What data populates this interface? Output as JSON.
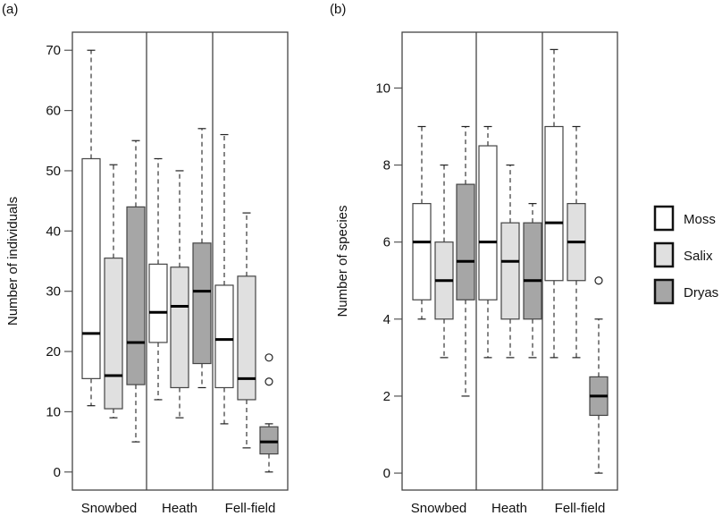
{
  "colors": {
    "moss": "#ffffff",
    "salix": "#e0e0e0",
    "dryas": "#a6a6a6",
    "stroke": "#444444",
    "median": "#000000"
  },
  "legend": {
    "items": [
      {
        "label": "Moss",
        "color_key": "moss"
      },
      {
        "label": "Salix",
        "color_key": "salix"
      },
      {
        "label": "Dryas",
        "color_key": "dryas"
      }
    ],
    "placement": "right"
  },
  "chart_data": [
    {
      "type": "boxplot",
      "panel_label": "(a)",
      "title": "",
      "xlabel": "",
      "ylabel": "Number of individuals",
      "ylim": [
        -3,
        73
      ],
      "yticks": [
        0,
        10,
        20,
        30,
        40,
        50,
        60,
        70
      ],
      "grid": false,
      "categories": [
        "Snowbed",
        "Heath",
        "Fell-field"
      ],
      "series_names": [
        "Moss",
        "Salix",
        "Dryas"
      ],
      "boxes": [
        {
          "category": "Snowbed",
          "series": "Moss",
          "whisker_low": 11,
          "q1": 15.5,
          "median": 23,
          "q3": 52,
          "whisker_high": 70,
          "outliers": []
        },
        {
          "category": "Snowbed",
          "series": "Salix",
          "whisker_low": 9,
          "q1": 10.5,
          "median": 16,
          "q3": 35.5,
          "whisker_high": 51,
          "outliers": []
        },
        {
          "category": "Snowbed",
          "series": "Dryas",
          "whisker_low": 5,
          "q1": 14.5,
          "median": 21.5,
          "q3": 44,
          "whisker_high": 55,
          "outliers": []
        },
        {
          "category": "Heath",
          "series": "Moss",
          "whisker_low": 12,
          "q1": 21.5,
          "median": 26.5,
          "q3": 34.5,
          "whisker_high": 52,
          "outliers": []
        },
        {
          "category": "Heath",
          "series": "Salix",
          "whisker_low": 9,
          "q1": 14,
          "median": 27.5,
          "q3": 34,
          "whisker_high": 50,
          "outliers": []
        },
        {
          "category": "Heath",
          "series": "Dryas",
          "whisker_low": 14,
          "q1": 18,
          "median": 30,
          "q3": 38,
          "whisker_high": 57,
          "outliers": []
        },
        {
          "category": "Fell-field",
          "series": "Moss",
          "whisker_low": 8,
          "q1": 14,
          "median": 22,
          "q3": 31,
          "whisker_high": 56,
          "outliers": []
        },
        {
          "category": "Fell-field",
          "series": "Salix",
          "whisker_low": 4,
          "q1": 12,
          "median": 15.5,
          "q3": 32.5,
          "whisker_high": 43,
          "outliers": []
        },
        {
          "category": "Fell-field",
          "series": "Dryas",
          "whisker_low": 0,
          "q1": 3,
          "median": 5,
          "q3": 7.5,
          "whisker_high": 8,
          "outliers": [
            15,
            19
          ]
        }
      ]
    },
    {
      "type": "boxplot",
      "panel_label": "(b)",
      "title": "",
      "xlabel": "",
      "ylabel": "Number of species",
      "ylim": [
        -0.44,
        11.45
      ],
      "yticks": [
        0,
        2,
        4,
        6,
        8,
        10
      ],
      "grid": false,
      "categories": [
        "Snowbed",
        "Heath",
        "Fell-field"
      ],
      "series_names": [
        "Moss",
        "Salix",
        "Dryas"
      ],
      "boxes": [
        {
          "category": "Snowbed",
          "series": "Moss",
          "whisker_low": 4,
          "q1": 4.5,
          "median": 6,
          "q3": 7,
          "whisker_high": 9,
          "outliers": []
        },
        {
          "category": "Snowbed",
          "series": "Salix",
          "whisker_low": 3,
          "q1": 4,
          "median": 5,
          "q3": 6,
          "whisker_high": 8,
          "outliers": []
        },
        {
          "category": "Snowbed",
          "series": "Dryas",
          "whisker_low": 2,
          "q1": 4.5,
          "median": 5.5,
          "q3": 7.5,
          "whisker_high": 9,
          "outliers": []
        },
        {
          "category": "Heath",
          "series": "Moss",
          "whisker_low": 3,
          "q1": 4.5,
          "median": 6,
          "q3": 8.5,
          "whisker_high": 9,
          "outliers": []
        },
        {
          "category": "Heath",
          "series": "Salix",
          "whisker_low": 3,
          "q1": 4,
          "median": 5.5,
          "q3": 6.5,
          "whisker_high": 8,
          "outliers": []
        },
        {
          "category": "Heath",
          "series": "Dryas",
          "whisker_low": 3,
          "q1": 4,
          "median": 5,
          "q3": 6.5,
          "whisker_high": 7,
          "outliers": []
        },
        {
          "category": "Fell-field",
          "series": "Moss",
          "whisker_low": 3,
          "q1": 5,
          "median": 6.5,
          "q3": 9,
          "whisker_high": 11,
          "outliers": []
        },
        {
          "category": "Fell-field",
          "series": "Salix",
          "whisker_low": 3,
          "q1": 5,
          "median": 6,
          "q3": 7,
          "whisker_high": 9,
          "outliers": []
        },
        {
          "category": "Fell-field",
          "series": "Dryas",
          "whisker_low": 0,
          "q1": 1.5,
          "median": 2,
          "q3": 2.5,
          "whisker_high": 4,
          "outliers": [
            5
          ]
        }
      ]
    }
  ]
}
